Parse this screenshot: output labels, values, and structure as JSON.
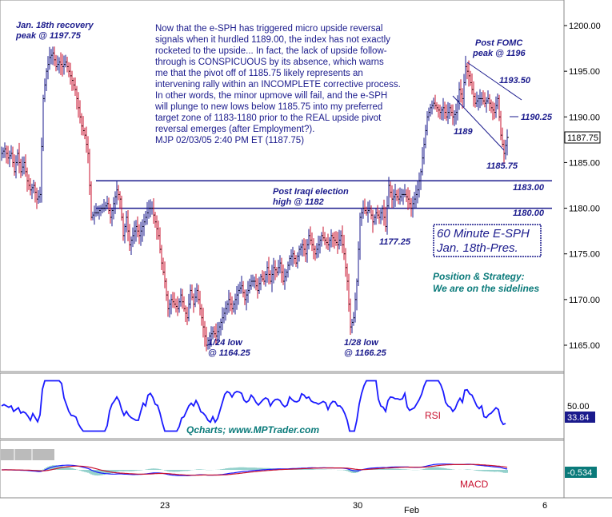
{
  "chart_data": [
    {
      "type": "candlestick",
      "title": "60 Minute E-SPH",
      "subtitle": "Jan. 18th-Pres.",
      "x_labels": [
        "23",
        "30",
        "Feb",
        "6"
      ],
      "y_ticks": [
        "1200.00",
        "1195.00",
        "1190.00",
        "1185.00",
        "1180.00",
        "1175.00",
        "1170.00",
        "1165.00"
      ],
      "ylim": [
        1162,
        1202
      ],
      "last_price": "1187.75",
      "levels": [
        {
          "name": "resistance",
          "value": 1183.0,
          "label": "1183.00"
        },
        {
          "name": "support",
          "value": 1180.0,
          "label": "1180.00"
        }
      ],
      "price_path": [
        [
          0,
          1186
        ],
        [
          4,
          1186.5
        ],
        [
          8,
          1185.5
        ],
        [
          12,
          1186
        ],
        [
          16,
          1184
        ],
        [
          20,
          1186
        ],
        [
          24,
          1184
        ],
        [
          28,
          1185
        ],
        [
          32,
          1183
        ],
        [
          36,
          1182
        ],
        [
          40,
          1182.5
        ],
        [
          44,
          1181
        ],
        [
          48,
          1181.5
        ],
        [
          52,
          1192
        ],
        [
          56,
          1195
        ],
        [
          60,
          1196.5
        ],
        [
          64,
          1197
        ],
        [
          68,
          1195.5
        ],
        [
          72,
          1196
        ],
        [
          76,
          1195.5
        ],
        [
          80,
          1196
        ],
        [
          84,
          1195
        ],
        [
          88,
          1194
        ],
        [
          92,
          1193
        ],
        [
          96,
          1191
        ],
        [
          100,
          1189
        ],
        [
          104,
          1188
        ],
        [
          108,
          1186
        ],
        [
          112,
          1179
        ],
        [
          116,
          1179.5
        ],
        [
          120,
          1179.5
        ],
        [
          124,
          1180
        ],
        [
          128,
          1180
        ],
        [
          132,
          1180.5
        ],
        [
          136,
          1179
        ],
        [
          140,
          1180.5
        ],
        [
          144,
          1182
        ],
        [
          148,
          1181
        ],
        [
          152,
          1177
        ],
        [
          156,
          1179
        ],
        [
          160,
          1176
        ],
        [
          164,
          1177
        ],
        [
          168,
          1178
        ],
        [
          172,
          1177
        ],
        [
          176,
          1178
        ],
        [
          180,
          1179
        ],
        [
          184,
          1180
        ],
        [
          188,
          1180
        ],
        [
          192,
          1178.5
        ],
        [
          196,
          1177
        ],
        [
          200,
          1174
        ],
        [
          204,
          1172
        ],
        [
          208,
          1169
        ],
        [
          212,
          1170
        ],
        [
          216,
          1169.5
        ],
        [
          220,
          1169
        ],
        [
          224,
          1170.5
        ],
        [
          228,
          1169
        ],
        [
          232,
          1168
        ],
        [
          236,
          1171
        ],
        [
          240,
          1169.5
        ],
        [
          244,
          1171
        ],
        [
          248,
          1169
        ],
        [
          252,
          1167
        ],
        [
          256,
          1165
        ],
        [
          260,
          1166
        ],
        [
          264,
          1166.5
        ],
        [
          268,
          1166
        ],
        [
          272,
          1167
        ],
        [
          276,
          1168
        ],
        [
          280,
          1169
        ],
        [
          284,
          1170
        ],
        [
          288,
          1169
        ],
        [
          292,
          1170
        ],
        [
          296,
          1171
        ],
        [
          300,
          1171.5
        ],
        [
          304,
          1170
        ],
        [
          308,
          1171
        ],
        [
          312,
          1172
        ],
        [
          316,
          1172
        ],
        [
          320,
          1171
        ],
        [
          324,
          1172.5
        ],
        [
          328,
          1172
        ],
        [
          332,
          1173.5
        ],
        [
          336,
          1172
        ],
        [
          340,
          1173.5
        ],
        [
          344,
          1173
        ],
        [
          348,
          1174
        ],
        [
          352,
          1172
        ],
        [
          356,
          1173
        ],
        [
          360,
          1174.5
        ],
        [
          364,
          1175
        ],
        [
          368,
          1174
        ],
        [
          372,
          1175.5
        ],
        [
          376,
          1176
        ],
        [
          380,
          1175
        ],
        [
          384,
          1177
        ],
        [
          388,
          1176
        ],
        [
          392,
          1175
        ],
        [
          396,
          1176
        ],
        [
          400,
          1177
        ],
        [
          404,
          1176.5
        ],
        [
          408,
          1176
        ],
        [
          412,
          1177
        ],
        [
          416,
          1176.5
        ],
        [
          420,
          1176
        ],
        [
          424,
          1177
        ],
        [
          428,
          1175
        ],
        [
          432,
          1172
        ],
        [
          436,
          1167
        ],
        [
          440,
          1168
        ],
        [
          444,
          1172
        ],
        [
          448,
          1179
        ],
        [
          452,
          1180
        ],
        [
          456,
          1179.5
        ],
        [
          460,
          1180
        ],
        [
          464,
          1178.5
        ],
        [
          468,
          1179.5
        ],
        [
          472,
          1179
        ],
        [
          476,
          1180
        ],
        [
          480,
          1178
        ],
        [
          484,
          1182.5
        ],
        [
          488,
          1181
        ],
        [
          492,
          1181.5
        ],
        [
          496,
          1181
        ],
        [
          500,
          1181.5
        ],
        [
          504,
          1181.5
        ],
        [
          508,
          1181
        ],
        [
          512,
          1180
        ],
        [
          516,
          1181
        ],
        [
          520,
          1182
        ],
        [
          524,
          1184
        ],
        [
          528,
          1187
        ],
        [
          532,
          1190
        ],
        [
          536,
          1191
        ],
        [
          540,
          1191.5
        ],
        [
          544,
          1191
        ],
        [
          548,
          1190.5
        ],
        [
          552,
          1191
        ],
        [
          556,
          1190
        ],
        [
          560,
          1191
        ],
        [
          564,
          1190
        ],
        [
          568,
          1190.5
        ],
        [
          572,
          1193
        ],
        [
          576,
          1192
        ],
        [
          580,
          1195.5
        ],
        [
          584,
          1194.5
        ],
        [
          588,
          1193
        ],
        [
          592,
          1191.5
        ],
        [
          596,
          1192
        ],
        [
          600,
          1192
        ],
        [
          604,
          1191.5
        ],
        [
          608,
          1192
        ],
        [
          612,
          1191
        ],
        [
          616,
          1190.5
        ],
        [
          620,
          1192
        ],
        [
          624,
          1188
        ],
        [
          628,
          1186
        ],
        [
          632,
          1187.75
        ]
      ]
    },
    {
      "type": "line",
      "series": [
        {
          "name": "RSI"
        }
      ],
      "last_value": "33.84",
      "y_ticks": [
        "50.00"
      ]
    },
    {
      "type": "line",
      "series": [
        {
          "name": "MACD"
        }
      ],
      "last_value": "-0.534"
    }
  ],
  "commentary": {
    "lines": [
      "Now that the e-SPH has triggered micro upside reversal",
      "signals when it hurdled 1189.00, the index has not exactly",
      "rocketed to the upside... In fact, the lack of upside follow-",
      "through is CONSPICUOUS by its absence, which warns",
      "me that the pivot off of 1185.75 likely represents an",
      "intervening rally within an INCOMPLETE corrective process.",
      "In other words, the minor upmove will fail, and the e-SPH",
      "will plunge to new lows below 1185.75 into my preferred",
      "target zone of 1183-1180 prior to the REAL upside pivot",
      "reversal emerges (after Employment?).",
      "MJP 02/03/05  2:40 PM ET (1187.75)"
    ]
  },
  "annotations": {
    "recovery_peak_1": "Jan. 18th recovery",
    "recovery_peak_2": "peak @ 1197.75",
    "post_fomc_1": "Post FOMC",
    "post_fomc_2": "peak @ 1196",
    "post_iraqi_1": "Post Iraqi election",
    "post_iraqi_2": "high @ 1182",
    "low_124_1": "1/24 low",
    "low_124_2": "@ 1164.25",
    "low_128_1": "1/28 low",
    "low_128_2": "@ 1166.25",
    "val_117725": "1177.25",
    "val_1193": "1193.50",
    "val_1190": "1190.25",
    "val_1189": "1189",
    "val_1185": "1185.75",
    "position_1": "Position & Strategy:",
    "position_2": "We are on the sidelines",
    "qcharts": "Qcharts; www.MPTrader.com",
    "rsi_label": "RSI",
    "macd_label": "MACD"
  }
}
